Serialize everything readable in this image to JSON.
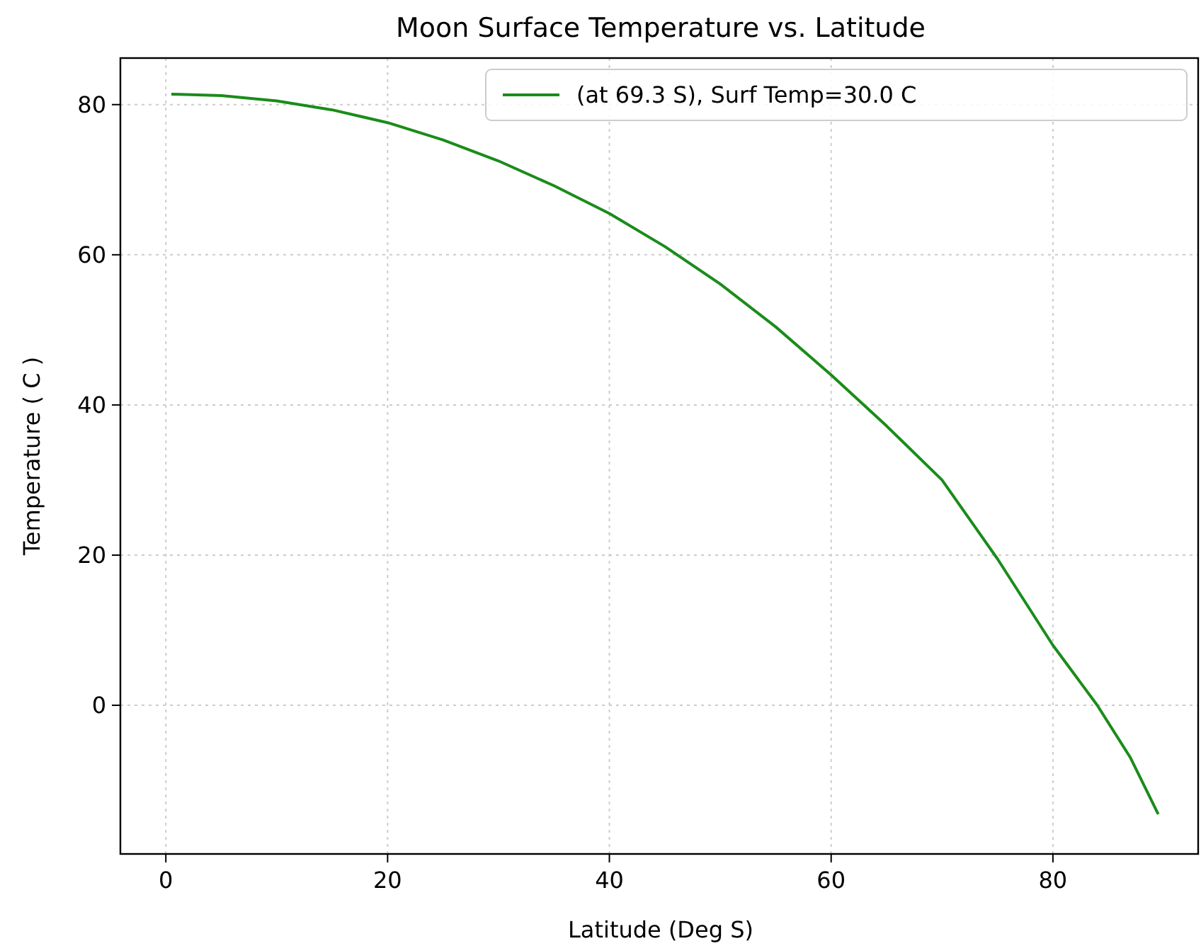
{
  "chart_data": {
    "type": "line",
    "title": "Moon Surface Temperature vs. Latitude",
    "xlabel": "Latitude (Deg S)",
    "ylabel": "Temperature ( C )",
    "xlim": [
      -4.1,
      93.1
    ],
    "ylim": [
      -19.8,
      86.2
    ],
    "xticks": [
      0,
      20,
      40,
      60,
      80
    ],
    "yticks": [
      0,
      20,
      40,
      60,
      80
    ],
    "grid": true,
    "legend": "top right",
    "series": [
      {
        "name": "(at 69.3 S), Surf Temp=30.0 C",
        "color": "#1a8c1a",
        "x": [
          0.5,
          5,
          10,
          15,
          20,
          25,
          30,
          35,
          40,
          45,
          50,
          55,
          60,
          65,
          70,
          75,
          80,
          84,
          87,
          89.5
        ],
        "values": [
          81.4,
          81.2,
          80.5,
          79.3,
          77.6,
          75.3,
          72.5,
          69.2,
          65.5,
          61.1,
          56.1,
          50.4,
          44,
          37.2,
          30,
          19.5,
          8,
          0,
          -7,
          -14.5
        ]
      }
    ]
  }
}
